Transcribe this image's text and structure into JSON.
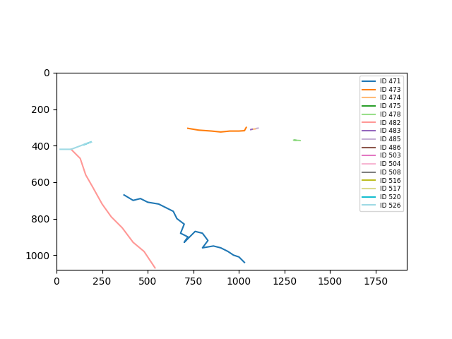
{
  "chart_data": {
    "type": "line",
    "xlim": [
      0,
      1920
    ],
    "ylim": [
      1080,
      0
    ],
    "xticks": [
      0,
      250,
      500,
      750,
      1000,
      1250,
      1500,
      1750
    ],
    "yticks": [
      0,
      200,
      400,
      600,
      800,
      1000
    ],
    "legend": "upper right",
    "series": [
      {
        "name": "ID 471",
        "color": "#1f77b4",
        "x": [
          370,
          420,
          460,
          500,
          560,
          600,
          640,
          660,
          700,
          680,
          720,
          700,
          760,
          800,
          830,
          800,
          860,
          900,
          940,
          970,
          1000,
          1030
        ],
        "y": [
          670,
          700,
          690,
          710,
          720,
          740,
          760,
          800,
          830,
          880,
          900,
          930,
          870,
          880,
          920,
          960,
          950,
          960,
          980,
          1000,
          1010,
          1040
        ]
      },
      {
        "name": "ID 473",
        "color": "#ff7f0e",
        "x": [
          720,
          780,
          850,
          900,
          950,
          1000,
          1030,
          1040
        ],
        "y": [
          305,
          315,
          320,
          325,
          320,
          320,
          318,
          300
        ]
      },
      {
        "name": "ID 474",
        "color": "#ffbb78",
        "x": [
          1075,
          1090
        ],
        "y": [
          310,
          308
        ]
      },
      {
        "name": "ID 475",
        "color": "#2ca02c",
        "x": [
          1305,
          1312
        ],
        "y": [
          370,
          371
        ]
      },
      {
        "name": "ID 478",
        "color": "#98df8a",
        "x": [
          1300,
          1335
        ],
        "y": [
          370,
          372
        ]
      },
      {
        "name": "ID 482",
        "color": "#ff9896",
        "x": [
          80,
          130,
          160,
          200,
          250,
          300,
          360,
          420,
          480,
          520,
          540
        ],
        "y": [
          420,
          470,
          560,
          630,
          720,
          790,
          850,
          930,
          980,
          1040,
          1070
        ]
      },
      {
        "name": "ID 483",
        "color": "#9467bd",
        "x": [
          1065,
          1072
        ],
        "y": [
          312,
          310
        ]
      },
      {
        "name": "ID 485",
        "color": "#c5b0d5",
        "x": [
          1095,
          1105
        ],
        "y": [
          306,
          304
        ]
      },
      {
        "name": "ID 486",
        "color": "#8c564b",
        "x": [],
        "y": []
      },
      {
        "name": "ID 503",
        "color": "#e377c2",
        "x": [],
        "y": []
      },
      {
        "name": "ID 504",
        "color": "#f7b6d2",
        "x": [],
        "y": []
      },
      {
        "name": "ID 508",
        "color": "#7f7f7f",
        "x": [],
        "y": []
      },
      {
        "name": "ID 516",
        "color": "#bcbd22",
        "x": [],
        "y": []
      },
      {
        "name": "ID 517",
        "color": "#dbdb8d",
        "x": [],
        "y": []
      },
      {
        "name": "ID 520",
        "color": "#17becf",
        "x": [
          150,
          175,
          190
        ],
        "y": [
          395,
          385,
          380
        ]
      },
      {
        "name": "ID 526",
        "color": "#9edae5",
        "x": [
          20,
          80,
          120,
          160,
          190
        ],
        "y": [
          420,
          420,
          405,
          390,
          380
        ]
      }
    ]
  }
}
